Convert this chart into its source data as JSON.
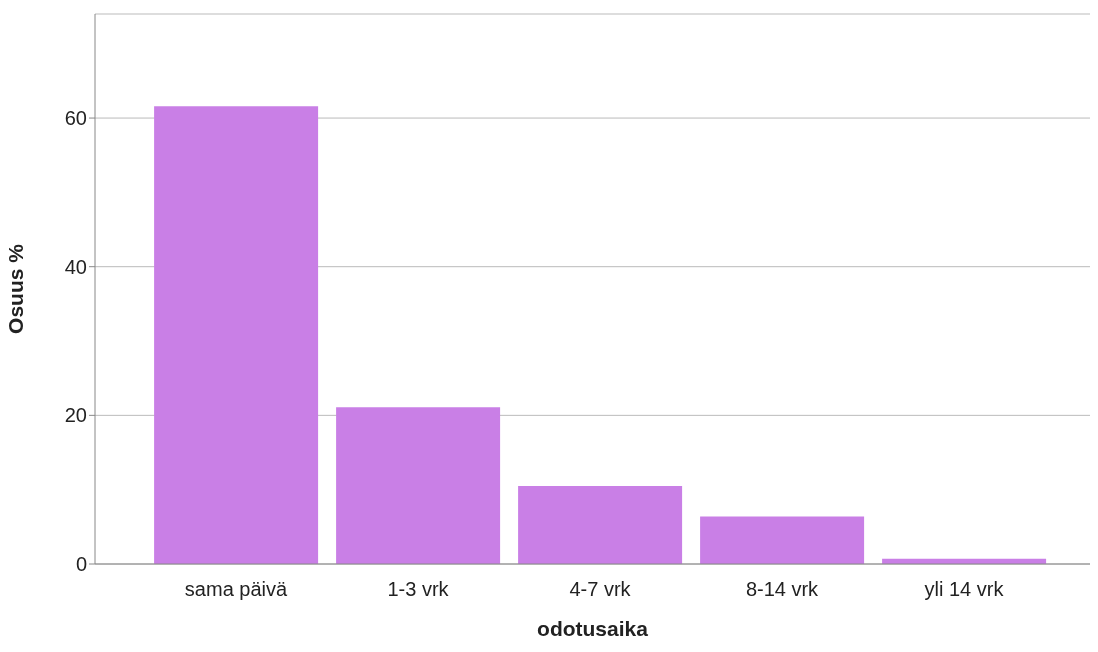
{
  "chart_data": {
    "type": "bar",
    "xlabel": "odotusaika",
    "ylabel": "Osuus %",
    "categories": [
      "sama päivä",
      "1-3 vrk",
      "4-7 vrk",
      "8-14 vrk",
      "yli 14 vrk"
    ],
    "values": [
      61.6,
      21.1,
      10.5,
      6.4,
      0.7
    ],
    "color": "#c97fe6",
    "ylim": [
      0,
      74
    ],
    "yticks": [
      0,
      20,
      40,
      60
    ],
    "grid": "y"
  }
}
